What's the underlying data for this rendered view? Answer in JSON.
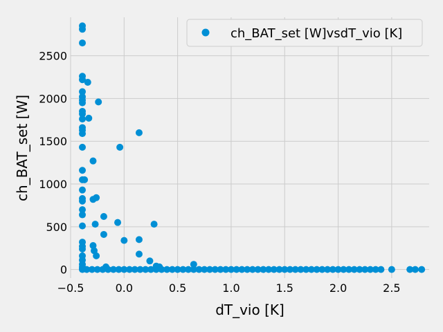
{
  "chart_data": {
    "type": "scatter",
    "xlabel": "dT_vio [K]",
    "ylabel": "ch_BAT_set [W]",
    "xlim": [
      -0.5,
      2.85
    ],
    "ylim": [
      -100,
      2950
    ],
    "xticks": [
      -0.5,
      0.0,
      0.5,
      1.0,
      1.5,
      2.0,
      2.5
    ],
    "xtick_labels": [
      "−0.5",
      "0.0",
      "0.5",
      "1.0",
      "1.5",
      "2.0",
      "2.5"
    ],
    "yticks": [
      0,
      500,
      1000,
      1500,
      2000,
      2500
    ],
    "ytick_labels": [
      "0",
      "500",
      "1000",
      "1500",
      "2000",
      "2500"
    ],
    "grid": true,
    "legend_position": "top-right",
    "color": "#008fd5",
    "series": [
      {
        "name": "ch_BAT_set [W]vsdT_vio [K]",
        "points": [
          [
            -0.39,
            2850
          ],
          [
            -0.39,
            2810
          ],
          [
            -0.39,
            2650
          ],
          [
            -0.39,
            2260
          ],
          [
            -0.39,
            2220
          ],
          [
            -0.39,
            2080
          ],
          [
            -0.39,
            2020
          ],
          [
            -0.39,
            1980
          ],
          [
            -0.39,
            1950
          ],
          [
            -0.39,
            1850
          ],
          [
            -0.39,
            1820
          ],
          [
            -0.39,
            1760
          ],
          [
            -0.39,
            1660
          ],
          [
            -0.39,
            1630
          ],
          [
            -0.39,
            1590
          ],
          [
            -0.39,
            1430
          ],
          [
            -0.39,
            1160
          ],
          [
            -0.39,
            1050
          ],
          [
            -0.39,
            930
          ],
          [
            -0.39,
            830
          ],
          [
            -0.39,
            800
          ],
          [
            -0.39,
            700
          ],
          [
            -0.39,
            640
          ],
          [
            -0.39,
            510
          ],
          [
            -0.39,
            320
          ],
          [
            -0.39,
            270
          ],
          [
            -0.39,
            240
          ],
          [
            -0.39,
            160
          ],
          [
            -0.39,
            110
          ],
          [
            -0.39,
            60
          ],
          [
            -0.39,
            30
          ],
          [
            -0.39,
            10
          ],
          [
            -0.39,
            0
          ],
          [
            -0.37,
            1050
          ],
          [
            -0.34,
            2190
          ],
          [
            -0.33,
            1770
          ],
          [
            -0.29,
            1270
          ],
          [
            -0.29,
            820
          ],
          [
            -0.29,
            280
          ],
          [
            -0.28,
            220
          ],
          [
            -0.27,
            530
          ],
          [
            -0.26,
            840
          ],
          [
            -0.26,
            160
          ],
          [
            -0.24,
            1960
          ],
          [
            -0.19,
            620
          ],
          [
            -0.19,
            410
          ],
          [
            -0.17,
            30
          ],
          [
            -0.06,
            550
          ],
          [
            -0.04,
            1430
          ],
          [
            0.0,
            340
          ],
          [
            0.14,
            1600
          ],
          [
            0.14,
            350
          ],
          [
            0.14,
            180
          ],
          [
            0.24,
            100
          ],
          [
            0.28,
            530
          ],
          [
            0.3,
            40
          ],
          [
            0.33,
            30
          ],
          [
            0.65,
            60
          ],
          [
            -0.35,
            0
          ],
          [
            -0.3,
            0
          ],
          [
            -0.25,
            0
          ],
          [
            -0.2,
            0
          ],
          [
            -0.15,
            0
          ],
          [
            -0.1,
            0
          ],
          [
            -0.05,
            0
          ],
          [
            0.0,
            0
          ],
          [
            0.05,
            0
          ],
          [
            0.1,
            0
          ],
          [
            0.15,
            0
          ],
          [
            0.2,
            0
          ],
          [
            0.25,
            0
          ],
          [
            0.3,
            0
          ],
          [
            0.35,
            0
          ],
          [
            0.4,
            0
          ],
          [
            0.45,
            0
          ],
          [
            0.5,
            0
          ],
          [
            0.55,
            0
          ],
          [
            0.6,
            0
          ],
          [
            0.65,
            0
          ],
          [
            0.7,
            0
          ],
          [
            0.75,
            0
          ],
          [
            0.8,
            0
          ],
          [
            0.85,
            0
          ],
          [
            0.9,
            0
          ],
          [
            0.95,
            0
          ],
          [
            1.0,
            0
          ],
          [
            1.05,
            0
          ],
          [
            1.1,
            0
          ],
          [
            1.15,
            0
          ],
          [
            1.2,
            0
          ],
          [
            1.25,
            0
          ],
          [
            1.3,
            0
          ],
          [
            1.35,
            0
          ],
          [
            1.4,
            0
          ],
          [
            1.45,
            0
          ],
          [
            1.5,
            0
          ],
          [
            1.55,
            0
          ],
          [
            1.6,
            0
          ],
          [
            1.65,
            0
          ],
          [
            1.7,
            0
          ],
          [
            1.75,
            0
          ],
          [
            1.8,
            0
          ],
          [
            1.85,
            0
          ],
          [
            1.9,
            0
          ],
          [
            1.95,
            0
          ],
          [
            2.0,
            0
          ],
          [
            2.05,
            0
          ],
          [
            2.1,
            0
          ],
          [
            2.15,
            0
          ],
          [
            2.2,
            0
          ],
          [
            2.25,
            0
          ],
          [
            2.3,
            0
          ],
          [
            2.35,
            0
          ],
          [
            2.4,
            0
          ],
          [
            2.5,
            0
          ],
          [
            2.67,
            0
          ],
          [
            2.72,
            0
          ],
          [
            2.78,
            0
          ]
        ]
      }
    ]
  }
}
